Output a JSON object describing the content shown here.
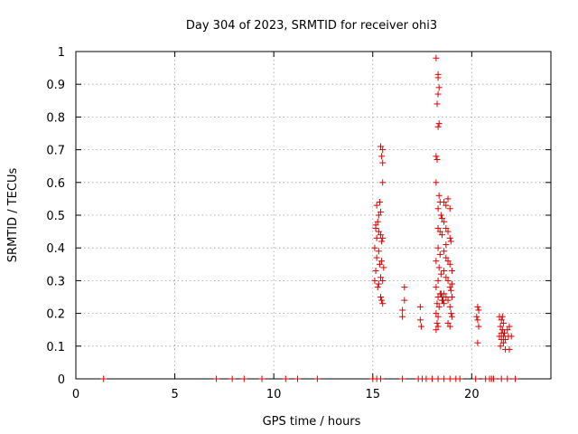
{
  "chart_data": {
    "type": "scatter",
    "title": "Day 304 of 2023, SRMTID for receiver ohi3",
    "xlabel": "GPS time / hours",
    "ylabel": "SRMTID / TECUs",
    "xlim": [
      0,
      24
    ],
    "ylim": [
      0,
      1
    ],
    "grid": true,
    "marker": "+",
    "marker_color": "#e00000",
    "x_ticks": [
      0,
      5,
      10,
      15,
      20
    ],
    "y_ticks": [
      0,
      0.1,
      0.2,
      0.3,
      0.4,
      0.5,
      0.6,
      0.7,
      0.8,
      0.9,
      1
    ],
    "series": [
      {
        "name": "SRMTID",
        "points": [
          [
            1.4,
            0
          ],
          [
            7.1,
            0
          ],
          [
            7.9,
            0
          ],
          [
            8.5,
            0
          ],
          [
            9.4,
            0
          ],
          [
            10.6,
            0
          ],
          [
            11.2,
            0
          ],
          [
            12.2,
            0
          ],
          [
            15.0,
            0
          ],
          [
            15.2,
            0
          ],
          [
            15.4,
            0
          ],
          [
            16.5,
            0
          ],
          [
            17.3,
            0
          ],
          [
            17.5,
            0
          ],
          [
            17.7,
            0
          ],
          [
            18.0,
            0
          ],
          [
            18.3,
            0
          ],
          [
            18.6,
            0
          ],
          [
            18.9,
            0
          ],
          [
            19.2,
            0
          ],
          [
            19.4,
            0
          ],
          [
            20.2,
            0
          ],
          [
            20.7,
            0
          ],
          [
            20.9,
            0
          ],
          [
            21.0,
            0
          ],
          [
            21.1,
            0
          ],
          [
            21.5,
            0
          ],
          [
            21.8,
            0
          ],
          [
            22.2,
            0
          ],
          [
            15.1,
            0.3
          ],
          [
            15.15,
            0.33
          ],
          [
            15.2,
            0.37
          ],
          [
            15.1,
            0.4
          ],
          [
            15.2,
            0.43
          ],
          [
            15.15,
            0.46
          ],
          [
            15.25,
            0.48
          ],
          [
            15.3,
            0.5
          ],
          [
            15.2,
            0.53
          ],
          [
            15.35,
            0.54
          ],
          [
            15.4,
            0.51
          ],
          [
            15.3,
            0.45
          ],
          [
            15.45,
            0.42
          ],
          [
            15.4,
            0.44
          ],
          [
            15.5,
            0.43
          ],
          [
            15.35,
            0.35
          ],
          [
            15.45,
            0.36
          ],
          [
            15.4,
            0.31
          ],
          [
            15.5,
            0.3
          ],
          [
            15.4,
            0.25
          ],
          [
            15.45,
            0.24
          ],
          [
            15.5,
            0.23
          ],
          [
            15.4,
            0.71
          ],
          [
            15.5,
            0.7
          ],
          [
            15.45,
            0.68
          ],
          [
            15.5,
            0.66
          ],
          [
            15.5,
            0.6
          ],
          [
            15.3,
            0.29
          ],
          [
            15.25,
            0.28
          ],
          [
            15.55,
            0.34
          ],
          [
            15.3,
            0.39
          ],
          [
            15.15,
            0.47
          ],
          [
            16.6,
            0.28
          ],
          [
            16.6,
            0.24
          ],
          [
            16.5,
            0.21
          ],
          [
            16.5,
            0.19
          ],
          [
            17.4,
            0.22
          ],
          [
            17.4,
            0.18
          ],
          [
            17.45,
            0.16
          ],
          [
            18.2,
            0.98
          ],
          [
            18.3,
            0.93
          ],
          [
            18.3,
            0.92
          ],
          [
            18.35,
            0.89
          ],
          [
            18.3,
            0.87
          ],
          [
            18.25,
            0.84
          ],
          [
            18.35,
            0.78
          ],
          [
            18.3,
            0.77
          ],
          [
            18.2,
            0.68
          ],
          [
            18.25,
            0.67
          ],
          [
            18.2,
            0.6
          ],
          [
            18.35,
            0.56
          ],
          [
            18.4,
            0.54
          ],
          [
            18.3,
            0.52
          ],
          [
            18.45,
            0.5
          ],
          [
            18.5,
            0.49
          ],
          [
            18.3,
            0.46
          ],
          [
            18.4,
            0.45
          ],
          [
            18.5,
            0.44
          ],
          [
            18.3,
            0.4
          ],
          [
            18.4,
            0.38
          ],
          [
            18.2,
            0.36
          ],
          [
            18.35,
            0.34
          ],
          [
            18.45,
            0.32
          ],
          [
            18.3,
            0.3
          ],
          [
            18.2,
            0.28
          ],
          [
            18.4,
            0.26
          ],
          [
            18.3,
            0.25
          ],
          [
            18.5,
            0.24
          ],
          [
            18.25,
            0.23
          ],
          [
            18.35,
            0.22
          ],
          [
            18.2,
            0.2
          ],
          [
            18.3,
            0.19
          ],
          [
            18.25,
            0.17
          ],
          [
            18.2,
            0.15
          ],
          [
            18.3,
            0.16
          ],
          [
            18.6,
            0.54
          ],
          [
            18.7,
            0.53
          ],
          [
            18.8,
            0.55
          ],
          [
            18.9,
            0.52
          ],
          [
            18.6,
            0.48
          ],
          [
            18.7,
            0.46
          ],
          [
            18.8,
            0.45
          ],
          [
            18.9,
            0.43
          ],
          [
            18.95,
            0.42
          ],
          [
            18.6,
            0.39
          ],
          [
            18.7,
            0.37
          ],
          [
            18.8,
            0.36
          ],
          [
            18.9,
            0.35
          ],
          [
            18.6,
            0.33
          ],
          [
            18.7,
            0.31
          ],
          [
            18.8,
            0.3
          ],
          [
            18.9,
            0.28
          ],
          [
            18.95,
            0.27
          ],
          [
            18.6,
            0.26
          ],
          [
            18.7,
            0.25
          ],
          [
            18.8,
            0.24
          ],
          [
            18.9,
            0.22
          ],
          [
            18.95,
            0.2
          ],
          [
            19.0,
            0.19
          ],
          [
            18.8,
            0.17
          ],
          [
            18.9,
            0.16
          ],
          [
            18.6,
            0.23
          ],
          [
            18.7,
            0.41
          ],
          [
            19.0,
            0.33
          ],
          [
            19.0,
            0.29
          ],
          [
            19.0,
            0.25
          ],
          [
            18.5,
            0.25
          ],
          [
            18.55,
            0.24
          ],
          [
            18.45,
            0.26
          ],
          [
            20.3,
            0.22
          ],
          [
            20.35,
            0.21
          ],
          [
            20.25,
            0.19
          ],
          [
            20.3,
            0.18
          ],
          [
            20.35,
            0.16
          ],
          [
            20.3,
            0.11
          ],
          [
            21.4,
            0.19
          ],
          [
            21.5,
            0.18
          ],
          [
            21.6,
            0.17
          ],
          [
            21.45,
            0.16
          ],
          [
            21.55,
            0.15
          ],
          [
            21.65,
            0.14
          ],
          [
            21.4,
            0.13
          ],
          [
            21.5,
            0.12
          ],
          [
            21.6,
            0.11
          ],
          [
            21.45,
            0.1
          ],
          [
            21.7,
            0.09
          ],
          [
            21.8,
            0.15
          ],
          [
            21.9,
            0.16
          ],
          [
            21.85,
            0.13
          ],
          [
            22.0,
            0.13
          ],
          [
            21.9,
            0.09
          ],
          [
            21.55,
            0.19
          ],
          [
            21.6,
            0.13
          ],
          [
            21.7,
            0.12
          ],
          [
            21.5,
            0.14
          ]
        ]
      }
    ]
  }
}
